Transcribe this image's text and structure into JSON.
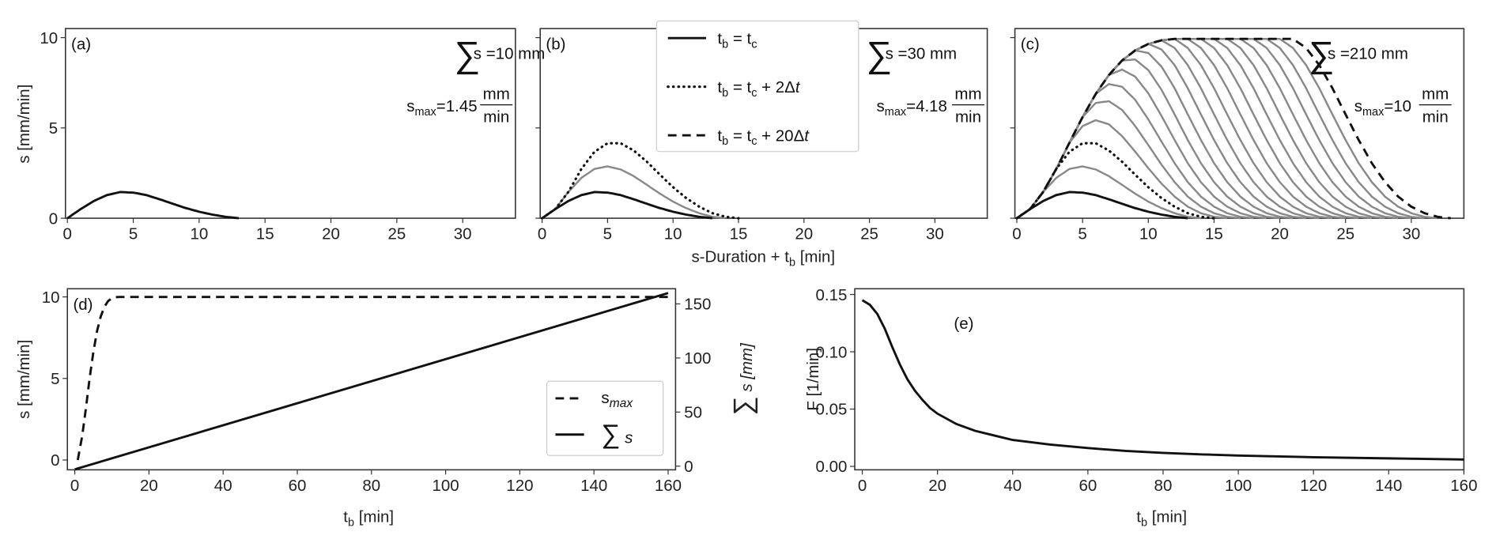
{
  "shared": {
    "top_xlabel": [
      "s-Duration + t",
      "b",
      " [min]"
    ]
  },
  "chart_data": [
    {
      "panel": "a",
      "type": "line",
      "label": "(a)",
      "xlim": [
        0,
        34
      ],
      "ylim": [
        0,
        10.5
      ],
      "xticks": [
        0,
        5,
        10,
        15,
        20,
        25,
        30
      ],
      "yticks": [
        0,
        5,
        10
      ],
      "ylabel": "s [mm/min]",
      "annotation": {
        "sum": "s =10 mm",
        "smax_prefix": "s",
        "smax_sub": "max",
        "smax_value": "=1.45",
        "unit_num": "mm",
        "unit_den": "min"
      },
      "base_curve": {
        "x": [
          0,
          1,
          2,
          3,
          4,
          5,
          6,
          7,
          8,
          9,
          10,
          11,
          12,
          13
        ],
        "y": [
          0,
          0.5,
          0.95,
          1.28,
          1.45,
          1.42,
          1.28,
          1.05,
          0.8,
          0.56,
          0.36,
          0.2,
          0.08,
          0
        ]
      },
      "series": [
        {
          "name": "t_b = t_c",
          "delta_t_steps": 0,
          "style": "solid"
        }
      ]
    },
    {
      "panel": "b",
      "type": "line",
      "label": "(b)",
      "xlim": [
        0,
        34
      ],
      "ylim": [
        0,
        10.5
      ],
      "xticks": [
        0,
        5,
        10,
        15,
        20,
        25,
        30
      ],
      "yticks": [
        0,
        5,
        10
      ],
      "annotation": {
        "sum": "s =30 mm",
        "smax_prefix": "s",
        "smax_sub": "max",
        "smax_value": "=4.18",
        "unit_num": "mm",
        "unit_den": "min"
      },
      "series": [
        {
          "name": "t_b = t_c",
          "delta_t_steps": 0,
          "style": "solid"
        },
        {
          "name": "t_b = t_c + Δt",
          "delta_t_steps": 1,
          "style": "gray"
        },
        {
          "name": "t_b = t_c + 2Δt",
          "delta_t_steps": 2,
          "style": "dotted"
        }
      ],
      "legend": {
        "placement": "top-center",
        "entries": [
          {
            "style": "solid",
            "parts": [
              [
                "t",
                ""
              ],
              [
                "b",
                "sub"
              ],
              [
                " = t",
                ""
              ],
              [
                "c",
                "sub"
              ]
            ]
          },
          {
            "style": "dotted",
            "parts": [
              [
                "t",
                ""
              ],
              [
                "b",
                "sub"
              ],
              [
                " = t",
                ""
              ],
              [
                "c",
                "sub"
              ],
              [
                " + 2Δ",
                ""
              ],
              [
                "t",
                "it"
              ]
            ]
          },
          {
            "style": "dashed",
            "parts": [
              [
                "t",
                ""
              ],
              [
                "b",
                "sub"
              ],
              [
                " = t",
                ""
              ],
              [
                "c",
                "sub"
              ],
              [
                " + 20Δ",
                ""
              ],
              [
                "t",
                "it"
              ]
            ]
          }
        ]
      }
    },
    {
      "panel": "c",
      "type": "line",
      "label": "(c)",
      "xlim": [
        0,
        34
      ],
      "ylim": [
        0,
        10.5
      ],
      "xticks": [
        0,
        5,
        10,
        15,
        20,
        25,
        30
      ],
      "yticks": [
        0,
        5,
        10
      ],
      "annotation": {
        "sum": "s =210 mm",
        "smax_prefix": "s",
        "smax_sub": "max",
        "smax_value": "=10",
        "unit_num": "mm",
        "unit_den": "min"
      },
      "series_steps": {
        "solid": [
          0
        ],
        "gray": [
          1,
          3,
          4,
          5,
          6,
          7,
          8,
          9,
          10,
          11,
          12,
          13,
          14,
          15,
          16,
          17,
          18,
          19
        ],
        "dotted": [
          2
        ],
        "dashed": [
          20
        ]
      }
    },
    {
      "panel": "d",
      "type": "line",
      "label": "(d)",
      "xlim": [
        -2,
        162
      ],
      "ylim": [
        -0.6,
        10.5
      ],
      "y2lim": [
        0,
        160
      ],
      "xticks": [
        0,
        20,
        40,
        60,
        80,
        100,
        120,
        140,
        160
      ],
      "yticks": [
        0,
        5,
        10
      ],
      "y2ticks": [
        0,
        50,
        100,
        150
      ],
      "xlabel": [
        "t",
        "b",
        " [min]"
      ],
      "ylabel": "s [mm/min]",
      "y2label": [
        "∑",
        " s [mm]"
      ],
      "series": [
        {
          "name": "s_max",
          "axis": "left",
          "style": "dashed",
          "x": [
            0.8,
            2,
            3,
            4,
            5,
            6,
            7,
            8,
            9,
            10,
            11,
            12,
            13,
            160
          ],
          "y": [
            0,
            1.5,
            3.2,
            5.0,
            6.6,
            7.9,
            8.8,
            9.4,
            9.75,
            9.92,
            9.98,
            10,
            10,
            10
          ]
        },
        {
          "name": "∑ s",
          "axis": "right",
          "style": "solid",
          "x": [
            0,
            160
          ],
          "y": [
            -3,
            160
          ]
        }
      ],
      "legend": {
        "placement": "lower-right",
        "entries": [
          {
            "style": "dashed",
            "parts": [
              [
                "s",
                ""
              ],
              [
                "max",
                "subit"
              ]
            ]
          },
          {
            "style": "solid",
            "parts": [
              [
                "∑",
                "big"
              ],
              [
                " s",
                "it"
              ]
            ]
          }
        ]
      }
    },
    {
      "panel": "e",
      "type": "line",
      "label": "(e)",
      "xlim": [
        -2,
        160
      ],
      "ylim": [
        -0.003,
        0.155
      ],
      "xticks": [
        0,
        20,
        40,
        60,
        80,
        100,
        120,
        140,
        160
      ],
      "yticks": [
        0.0,
        0.05,
        0.1,
        0.15
      ],
      "ytick_labels": [
        "0.00",
        "0.05",
        "0.10",
        "0.15"
      ],
      "xlabel": [
        "t",
        "b",
        " [min]"
      ],
      "ylabel": "F [1/min]",
      "series": [
        {
          "name": "F",
          "style": "solid",
          "x": [
            0,
            2,
            4,
            6,
            8,
            10,
            12,
            14,
            16,
            18,
            20,
            25,
            30,
            35,
            40,
            50,
            60,
            70,
            80,
            90,
            100,
            120,
            140,
            160
          ],
          "y": [
            0.145,
            0.141,
            0.133,
            0.12,
            0.104,
            0.089,
            0.076,
            0.066,
            0.058,
            0.051,
            0.046,
            0.037,
            0.031,
            0.027,
            0.023,
            0.019,
            0.016,
            0.0135,
            0.0118,
            0.0105,
            0.0095,
            0.008,
            0.007,
            0.006
          ]
        }
      ]
    }
  ],
  "colors": {
    "line": "#111111",
    "gray": "#888888",
    "axis": "#333333"
  }
}
